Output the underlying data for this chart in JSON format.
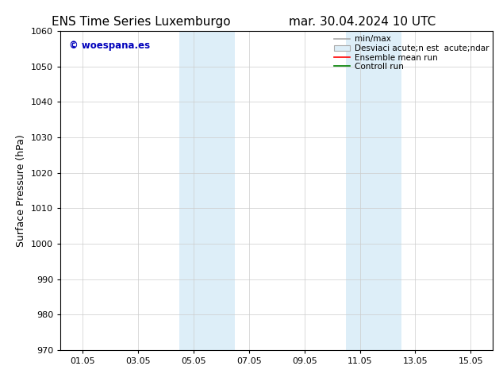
{
  "title_left": "ENS Time Series Luxemburgo",
  "title_right": "mar. 30.04.2024 10 UTC",
  "ylabel": "Surface Pressure (hPa)",
  "ylim": [
    970,
    1060
  ],
  "yticks": [
    970,
    980,
    990,
    1000,
    1010,
    1020,
    1030,
    1040,
    1050,
    1060
  ],
  "xtick_labels": [
    "01.05",
    "03.05",
    "05.05",
    "07.05",
    "09.05",
    "11.05",
    "13.05",
    "15.05"
  ],
  "xvalues": [
    0,
    2,
    4,
    6,
    8,
    10,
    12,
    14
  ],
  "xlim": [
    -0.8,
    14.8
  ],
  "shaded_regions": [
    {
      "x_start": 3.5,
      "x_end": 4.5,
      "color": "#ddeef8"
    },
    {
      "x_start": 4.5,
      "x_end": 5.5,
      "color": "#ddeef8"
    },
    {
      "x_start": 9.5,
      "x_end": 10.5,
      "color": "#ddeef8"
    },
    {
      "x_start": 10.5,
      "x_end": 11.5,
      "color": "#ddeef8"
    }
  ],
  "watermark_text": "© woespana.es",
  "watermark_color": "#0000bb",
  "legend_line1_label": "min/max",
  "legend_line2_label": "Desviaci acute;n est  acute;ndar",
  "legend_line3_label": "Ensemble mean run",
  "legend_line4_label": "Controll run",
  "background_color": "#ffffff",
  "title_fontsize": 11,
  "tick_fontsize": 8,
  "ylabel_fontsize": 9,
  "legend_fontsize": 7.5
}
